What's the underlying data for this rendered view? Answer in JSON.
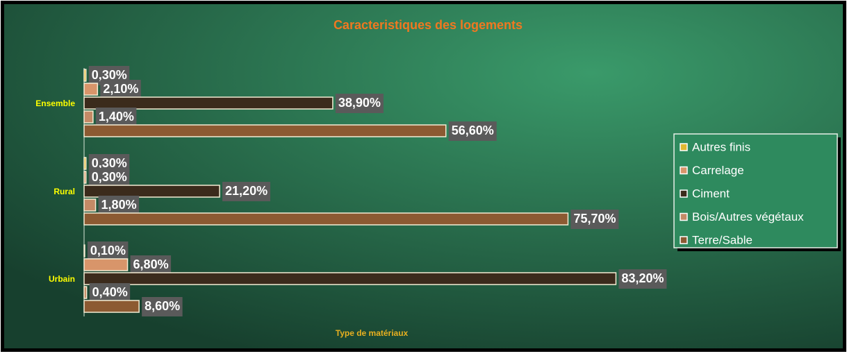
{
  "chart_data": {
    "type": "hbar",
    "title": "Caracteristiques des logements",
    "xlabel": "Type de matériaux",
    "categories": [
      "Ensemble",
      "Rural",
      "Urbain"
    ],
    "series": [
      {
        "name": "Autres finis",
        "color": "#e0b830",
        "values": [
          0.3,
          0.3,
          0.1
        ],
        "value_labels": [
          "0,30%",
          "0,30%",
          "0,10%"
        ]
      },
      {
        "name": "Carrelage",
        "color": "#d8956a",
        "values": [
          2.1,
          0.3,
          6.8
        ],
        "value_labels": [
          "2,10%",
          "0,30%",
          "6,80%"
        ]
      },
      {
        "name": "Ciment",
        "color": "#3b2b1c",
        "values": [
          38.9,
          21.2,
          83.2
        ],
        "value_labels": [
          "38,90%",
          "21,20%",
          "83,20%"
        ]
      },
      {
        "name": "Bois/Autres végétaux",
        "color": "#c48a66",
        "values": [
          1.4,
          1.8,
          0.4
        ],
        "value_labels": [
          "1,40%",
          "1,80%",
          "0,40%"
        ]
      },
      {
        "name": "Terre/Sable",
        "color": "#8c5a32",
        "values": [
          56.6,
          75.7,
          8.6
        ],
        "value_labels": [
          "56,60%",
          "75,70%",
          "8,60%"
        ]
      }
    ],
    "legend": "right"
  }
}
